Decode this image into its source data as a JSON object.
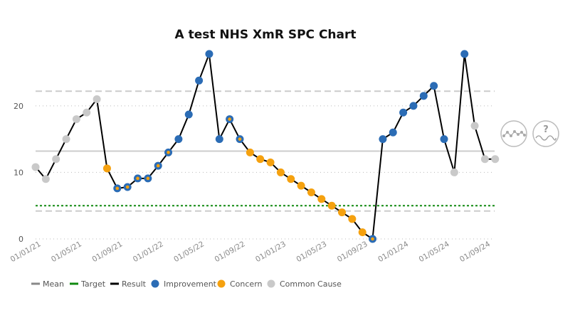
{
  "chart_data": {
    "type": "line",
    "title": "A test NHS XmR SPC Chart",
    "xlabel": "",
    "ylabel": "",
    "x_start": "01/01/21",
    "x_ticks": [
      "01/01/21",
      "01/05/21",
      "01/09/21",
      "01/01/22",
      "01/05/22",
      "01/09/22",
      "01/01/23",
      "01/05/23",
      "01/09/23",
      "01/01/24",
      "01/05/24",
      "01/09/24"
    ],
    "y_ticks": [
      0,
      10,
      20
    ],
    "ylim": [
      0,
      28
    ],
    "mean": 13.2,
    "target": 5,
    "upper_limit": 22.2,
    "lower_limit": 4.2,
    "grid": "horizontal dotted",
    "legend_position": "bottom-left",
    "legend": [
      "Mean",
      "Target",
      "Result",
      "Improvement",
      "Concern",
      "Common Cause"
    ],
    "series": [
      {
        "name": "Result",
        "values": [
          10.8,
          9,
          12,
          15,
          18,
          19,
          21,
          10.6,
          7.6,
          7.8,
          9.1,
          9.1,
          11,
          13,
          15,
          18.7,
          23.8,
          27.8,
          15,
          18,
          15,
          13,
          12,
          11.5,
          10,
          9,
          8,
          7,
          6,
          5,
          4,
          3,
          1,
          0,
          15,
          16,
          19,
          20,
          21.5,
          23,
          15,
          10,
          27.8,
          17,
          12,
          12
        ],
        "status": [
          "common",
          "common",
          "common",
          "common",
          "common",
          "common",
          "common",
          "concern",
          "improvement",
          "improvement",
          "improvement",
          "improvement",
          "improvement",
          "improvement",
          "improvement",
          "improvement",
          "improvement",
          "improvement",
          "improvement",
          "improvement",
          "improvement",
          "concern",
          "concern",
          "concern",
          "concern",
          "concern",
          "concern",
          "concern",
          "concern",
          "concern",
          "concern",
          "concern",
          "concern",
          "improvement",
          "improvement",
          "improvement",
          "improvement",
          "improvement",
          "improvement",
          "improvement",
          "improvement",
          "common",
          "improvement",
          "common",
          "common",
          "common"
        ],
        "dual": [
          false,
          false,
          false,
          false,
          false,
          false,
          false,
          false,
          true,
          true,
          true,
          true,
          true,
          true,
          false,
          false,
          false,
          false,
          false,
          true,
          true,
          false,
          false,
          false,
          false,
          false,
          false,
          false,
          false,
          false,
          false,
          false,
          false,
          true,
          false,
          false,
          false,
          false,
          false,
          false,
          false,
          false,
          false,
          false,
          false,
          false
        ]
      }
    ]
  },
  "colors": {
    "improvement": "#2b6cb5",
    "concern": "#f5a10f",
    "common": "#c9c9c9",
    "result_line": "#000000",
    "mean": "#cccccc",
    "limit": "#cccccc",
    "target": "#118a11"
  },
  "icons": {
    "variation": "variation-icon",
    "assurance": "assurance-icon",
    "assurance_symbol": "?"
  }
}
